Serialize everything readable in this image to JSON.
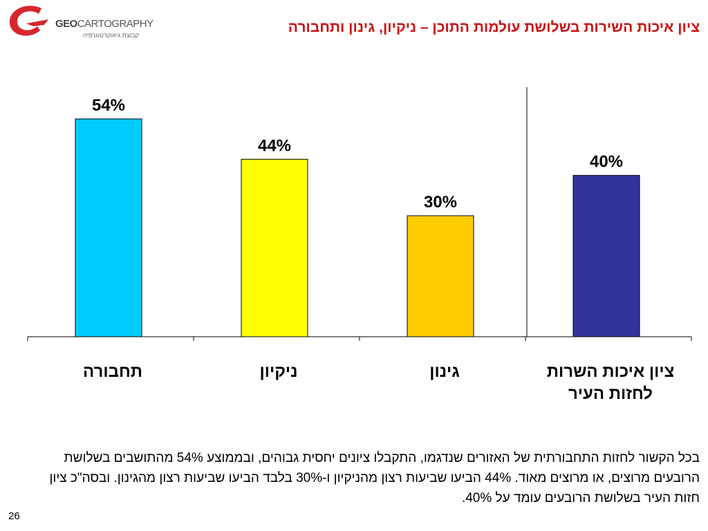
{
  "logo": {
    "brand_bold": "GEO",
    "brand_rest": "CARTOGRAPHY",
    "tagline": "קבוצת גיאוקרטוגרפיה",
    "color": "#d7262e"
  },
  "slide_title": "ציון איכות השירות בשלושת עולמות התוכן – ניקיון, גינון ותחבורה",
  "chart_data": {
    "type": "bar",
    "categories": [
      "תחבורה",
      "ניקיון",
      "גינון",
      "ציון איכות השרות לחזות העיר"
    ],
    "values": [
      54,
      44,
      30,
      40
    ],
    "data_labels": [
      "54%",
      "44%",
      "30%",
      "40%"
    ],
    "colors": [
      "#00ccff",
      "#ffff00",
      "#ffcc00",
      "#333399"
    ],
    "ylim": [
      0,
      60
    ],
    "grid": false,
    "separator_before_last": true
  },
  "body_text": "בכל הקשור לחזות התחבורתית של האזורים שנדגמו, התקבלו ציונים יחסית גבוהים, ובממוצע 54% מהתושבים בשלושת הרובעים מרוצים, או מרוצים מאוד. 44% הביעו שביעות רצון מהניקיון ו-30% בלבד הביעו שביעות רצון מהגינון. ובסה\"כ ציון חזות העיר בשלושת הרובעים עומד על 40%.",
  "page_number": "26"
}
